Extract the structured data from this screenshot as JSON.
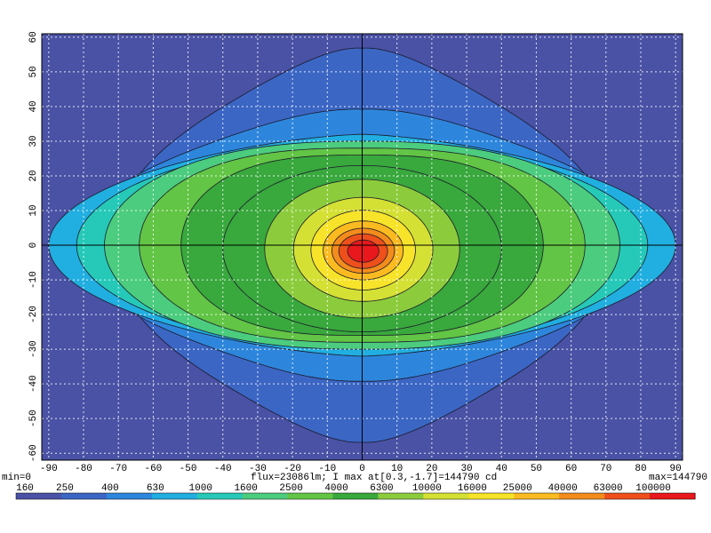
{
  "chart_data": {
    "type": "heatmap",
    "x_ticks": [
      -90,
      -80,
      -70,
      -60,
      -50,
      -40,
      -30,
      -20,
      -10,
      0,
      10,
      20,
      30,
      40,
      50,
      60,
      70,
      80,
      90
    ],
    "y_ticks": [
      60,
      50,
      40,
      30,
      20,
      10,
      0,
      -10,
      -20,
      -30,
      -40,
      -50,
      -60
    ],
    "xlim": [
      -92,
      92
    ],
    "ylim": [
      -62,
      61
    ],
    "grid": true,
    "min_label": "min=0",
    "max_label": "max=144790",
    "caption": "flux=23086lm; I max at[0.3,-1.7]=144790 cd",
    "peak": {
      "x": 0.3,
      "y": -1.7,
      "value": 144790
    },
    "colorbar": {
      "labels": [
        "160",
        "250",
        "400",
        "630",
        "1000",
        "1600",
        "2500",
        "4000",
        "6300",
        "10000",
        "16000",
        "25000",
        "40000",
        "63000",
        "100000"
      ],
      "colors": [
        "#4a52a5",
        "#3b66c4",
        "#2e86dc",
        "#21aee0",
        "#26c9b8",
        "#4ccc7e",
        "#62c545",
        "#39a83d",
        "#8ccc3c",
        "#d5e034",
        "#f7e329",
        "#fbbb20",
        "#f38c1c",
        "#ee4f1b",
        "#e8181c"
      ]
    },
    "background_color": "#4a52a5"
  }
}
